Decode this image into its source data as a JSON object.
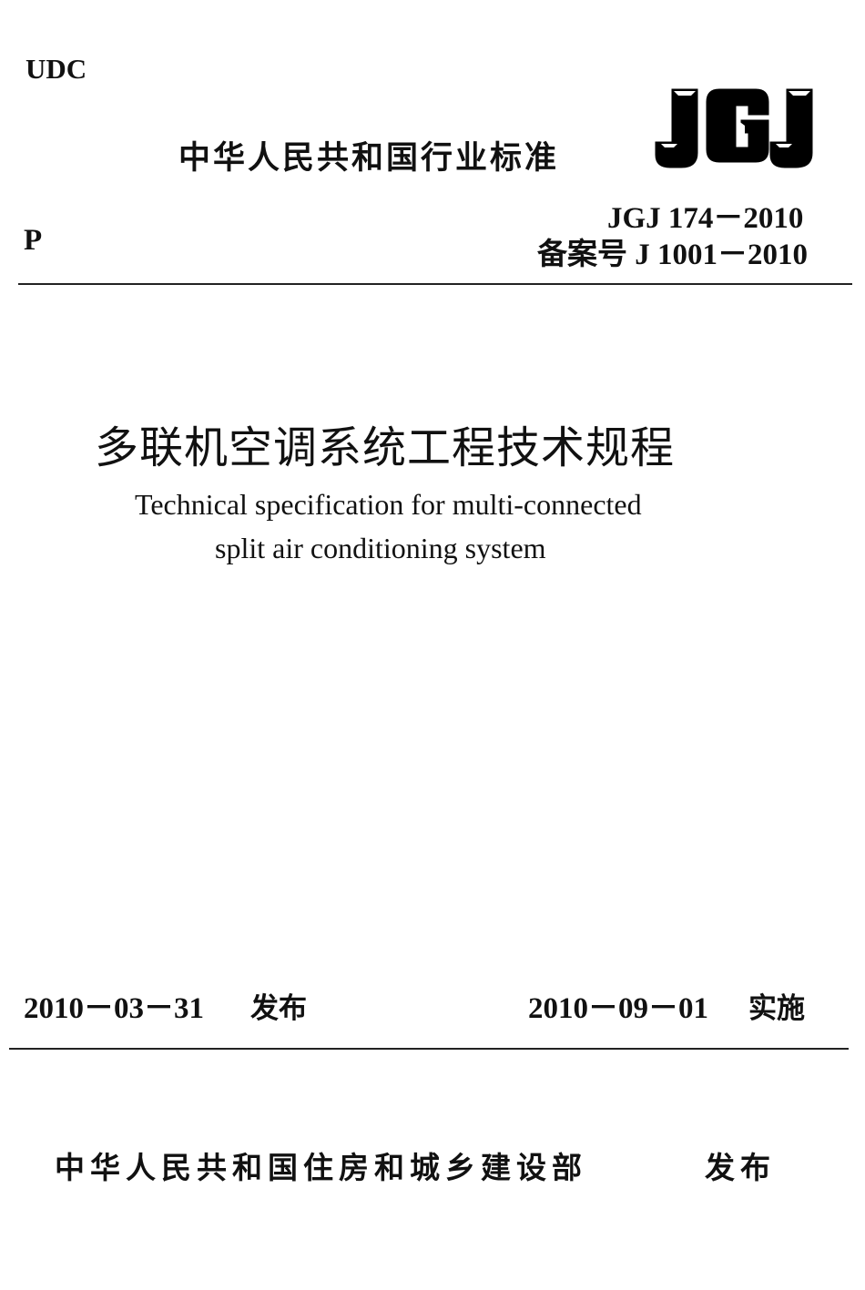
{
  "header": {
    "udc": "UDC",
    "category": "P",
    "standard_type": "中华人民共和国行业标准",
    "logo_text": "JGJ",
    "standard_number": "JGJ 174－2010",
    "record_number": "备案号 J 1001－2010"
  },
  "title": {
    "chinese": "多联机空调系统工程技术规程",
    "english_line1": "Technical specification for multi-connected",
    "english_line2": "split air conditioning system"
  },
  "dates": {
    "issue_date": "2010－03－31",
    "issue_label": "发布",
    "effective_date": "2010－09－01",
    "effective_label": "实施"
  },
  "footer": {
    "publisher": "中华人民共和国住房和城乡建设部",
    "publish_label": "发布"
  }
}
